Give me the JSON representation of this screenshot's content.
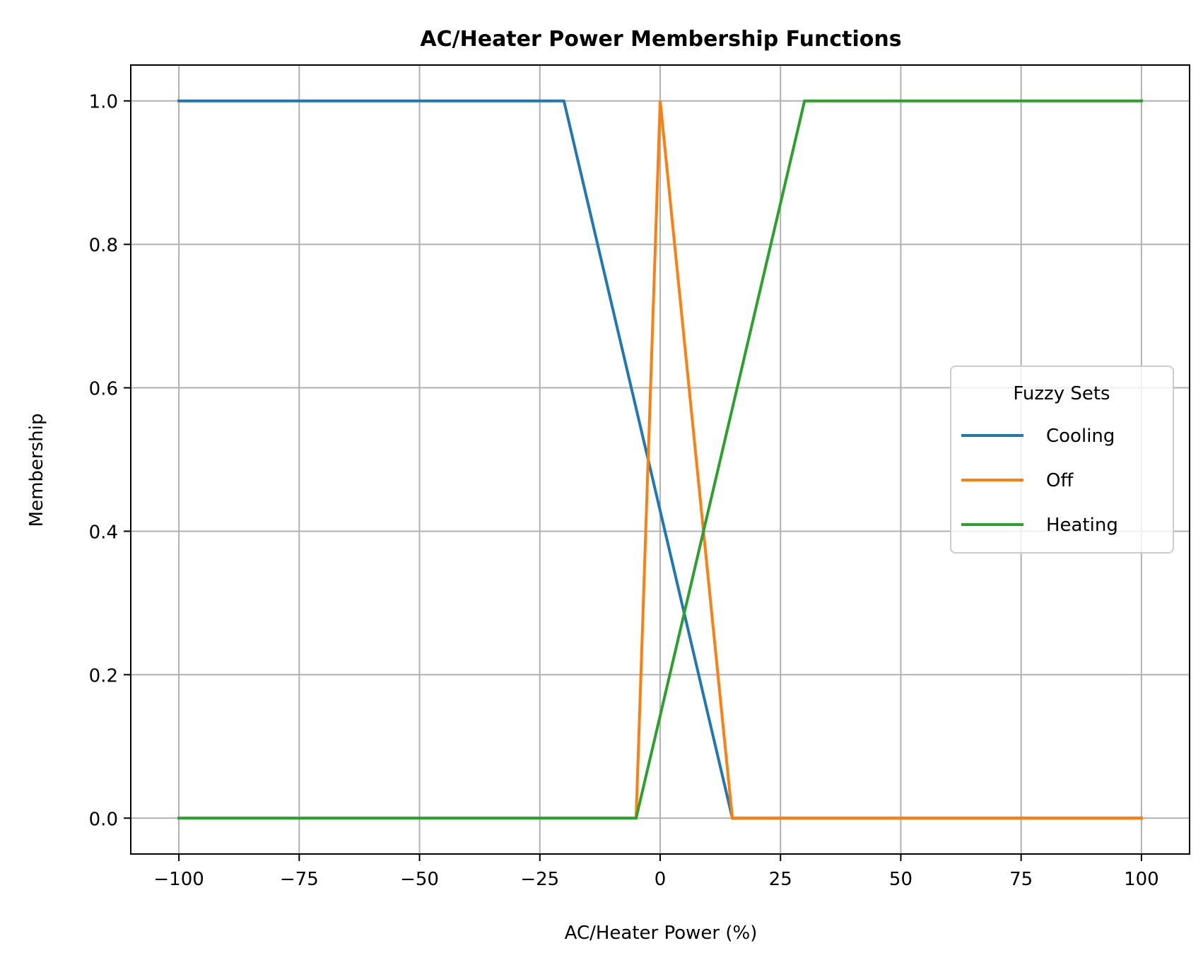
{
  "chart_data": {
    "type": "line",
    "title": "AC/Heater Power Membership Functions",
    "xlabel": "AC/Heater Power (%)",
    "ylabel": "Membership",
    "xlim": [
      -110,
      110
    ],
    "ylim": [
      -0.05,
      1.05
    ],
    "x_ticks": [
      -100,
      -75,
      -50,
      -25,
      0,
      25,
      50,
      75,
      100
    ],
    "x_tick_labels": [
      "−100",
      "−75",
      "−50",
      "−25",
      "0",
      "25",
      "50",
      "75",
      "100"
    ],
    "y_ticks": [
      0.0,
      0.2,
      0.4,
      0.6,
      0.8,
      1.0
    ],
    "y_tick_labels": [
      "0.0",
      "0.2",
      "0.4",
      "0.6",
      "0.8",
      "1.0"
    ],
    "grid": true,
    "legend": {
      "title": "Fuzzy Sets",
      "placement": "center-right"
    },
    "series": [
      {
        "name": "Cooling",
        "color": "#1f77b4",
        "points": [
          [
            -100,
            1.0
          ],
          [
            -20,
            1.0
          ],
          [
            15,
            0.0
          ],
          [
            100,
            0.0
          ]
        ]
      },
      {
        "name": "Off",
        "color": "#ff7f0e",
        "points": [
          [
            -100,
            0.0
          ],
          [
            -5,
            0.0
          ],
          [
            0,
            1.0
          ],
          [
            15,
            0.0
          ],
          [
            100,
            0.0
          ]
        ]
      },
      {
        "name": "Heating",
        "color": "#2ca02c",
        "points": [
          [
            -100,
            0.0
          ],
          [
            -5,
            0.0
          ],
          [
            30,
            1.0
          ],
          [
            100,
            1.0
          ]
        ]
      }
    ]
  }
}
